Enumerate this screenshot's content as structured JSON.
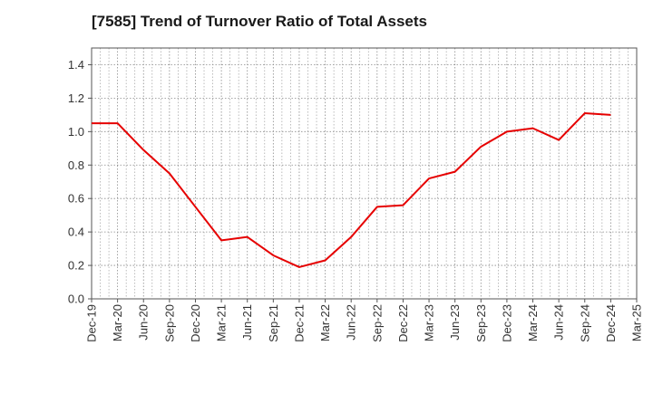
{
  "chart_data": {
    "type": "line",
    "title": "[7585]  Trend of Turnover Ratio of Total Assets",
    "xlabel": "",
    "ylabel": "",
    "ylim": [
      0,
      1.5
    ],
    "yticks": [
      "0.0",
      "0.2",
      "0.4",
      "0.6",
      "0.8",
      "1.0",
      "1.2",
      "1.4"
    ],
    "xticks": [
      "Dec-19",
      "Mar-20",
      "Jun-20",
      "Sep-20",
      "Dec-20",
      "Mar-21",
      "Jun-21",
      "Sep-21",
      "Dec-21",
      "Mar-22",
      "Jun-22",
      "Sep-22",
      "Dec-22",
      "Mar-23",
      "Jun-23",
      "Sep-23",
      "Dec-23",
      "Mar-24",
      "Jun-24",
      "Sep-24",
      "Dec-24",
      "Mar-25"
    ],
    "grid": true,
    "legend": "none",
    "series": [
      {
        "color": "#e60000",
        "x": [
          "Dec-19",
          "Mar-20",
          "Jun-20",
          "Sep-20",
          "Dec-20",
          "Mar-21",
          "Jun-21",
          "Sep-21",
          "Dec-21",
          "Mar-22",
          "Jun-22",
          "Sep-22",
          "Dec-22",
          "Mar-23",
          "Jun-23",
          "Sep-23",
          "Dec-23",
          "Mar-24",
          "Jun-24",
          "Sep-24",
          "Dec-24"
        ],
        "values": [
          1.05,
          1.05,
          0.89,
          0.75,
          0.55,
          0.35,
          0.37,
          0.26,
          0.19,
          0.23,
          0.37,
          0.55,
          0.56,
          0.72,
          0.76,
          0.91,
          1.0,
          1.02,
          0.95,
          1.11,
          1.1
        ]
      }
    ]
  }
}
